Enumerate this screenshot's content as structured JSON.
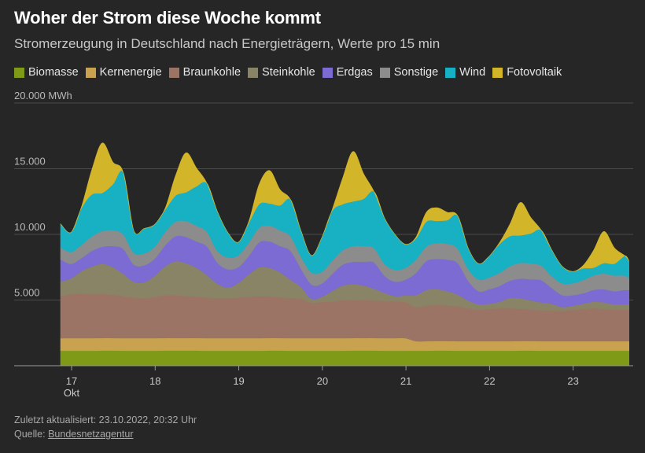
{
  "title": "Woher der Strom diese Woche kommt",
  "subtitle": "Stromerzeugung in Deutschland nach Energieträgern, Werte pro 15 min",
  "footer": {
    "updated": "Zuletzt aktualisiert: 23.10.2022, 20:32 Uhr",
    "source_label": "Quelle: ",
    "source_link": "Bundesnetzagentur"
  },
  "chart_data": {
    "type": "area",
    "stacked": true,
    "ylim": [
      0,
      20000
    ],
    "yticks": [
      {
        "value": 5000,
        "label": "5.000"
      },
      {
        "value": 10000,
        "label": "10.000"
      },
      {
        "value": 15000,
        "label": "15.000"
      },
      {
        "value": 20000,
        "label": "20.000 MWh"
      }
    ],
    "xlim": [
      17.0,
      23.85
    ],
    "xticks": [
      {
        "value": 17,
        "label": "17",
        "sublabel": "Okt"
      },
      {
        "value": 18,
        "label": "18"
      },
      {
        "value": 19,
        "label": "19"
      },
      {
        "value": 20,
        "label": "20"
      },
      {
        "value": 21,
        "label": "21"
      },
      {
        "value": 22,
        "label": "22"
      },
      {
        "value": 23,
        "label": "23"
      }
    ],
    "x": [
      17.0,
      17.125,
      17.25,
      17.375,
      17.5,
      17.625,
      17.75,
      17.875,
      18.0,
      18.125,
      18.25,
      18.375,
      18.5,
      18.625,
      18.75,
      18.875,
      19.0,
      19.125,
      19.25,
      19.375,
      19.5,
      19.625,
      19.75,
      19.875,
      20.0,
      20.125,
      20.25,
      20.375,
      20.5,
      20.625,
      20.75,
      20.875,
      21.0,
      21.125,
      21.25,
      21.375,
      21.5,
      21.625,
      21.75,
      21.875,
      22.0,
      22.125,
      22.25,
      22.375,
      22.5,
      22.625,
      22.75,
      22.875,
      23.0,
      23.125,
      23.25,
      23.375,
      23.5,
      23.625,
      23.75,
      23.8
    ],
    "series": [
      {
        "name": "Biomasse",
        "color": "#7f9a16",
        "values": [
          1150,
          1150,
          1150,
          1150,
          1160,
          1160,
          1150,
          1150,
          1150,
          1150,
          1160,
          1160,
          1160,
          1160,
          1150,
          1150,
          1150,
          1150,
          1150,
          1150,
          1160,
          1160,
          1150,
          1150,
          1150,
          1150,
          1150,
          1150,
          1160,
          1160,
          1160,
          1150,
          1150,
          1150,
          1150,
          1150,
          1160,
          1160,
          1150,
          1150,
          1150,
          1150,
          1150,
          1150,
          1160,
          1160,
          1150,
          1150,
          1150,
          1150,
          1150,
          1150,
          1150,
          1150,
          1150,
          1150
        ]
      },
      {
        "name": "Kernenergie",
        "color": "#c9a24f",
        "values": [
          950,
          950,
          950,
          950,
          950,
          950,
          950,
          950,
          950,
          950,
          950,
          950,
          950,
          950,
          950,
          950,
          950,
          950,
          950,
          950,
          950,
          950,
          950,
          950,
          950,
          950,
          950,
          950,
          950,
          950,
          950,
          950,
          950,
          950,
          720,
          720,
          720,
          720,
          720,
          720,
          720,
          720,
          720,
          720,
          720,
          720,
          720,
          720,
          720,
          720,
          720,
          720,
          720,
          720,
          720,
          720
        ]
      },
      {
        "name": "Braunkohle",
        "color": "#9c7465",
        "values": [
          3200,
          3350,
          3400,
          3350,
          3350,
          3300,
          3200,
          3100,
          3050,
          3150,
          3250,
          3250,
          3200,
          3150,
          3100,
          3050,
          3050,
          3100,
          3150,
          3200,
          3150,
          3100,
          3050,
          3000,
          2700,
          2750,
          2800,
          2900,
          2900,
          2900,
          2850,
          2850,
          2800,
          2750,
          2600,
          2700,
          2750,
          2700,
          2650,
          2500,
          2400,
          2450,
          2500,
          2500,
          2450,
          2400,
          2350,
          2350,
          2300,
          2400,
          2450,
          2500,
          2450,
          2400,
          2400,
          2400
        ]
      },
      {
        "name": "Steinkohle",
        "color": "#8a8466",
        "values": [
          1100,
          1200,
          1700,
          2100,
          2300,
          2100,
          1700,
          1200,
          1200,
          1600,
          2200,
          2600,
          2500,
          2200,
          1700,
          1100,
          800,
          1100,
          1700,
          2200,
          2200,
          1900,
          1400,
          900,
          300,
          400,
          800,
          1100,
          1200,
          1100,
          900,
          600,
          400,
          500,
          900,
          1200,
          1200,
          1100,
          900,
          600,
          400,
          400,
          500,
          800,
          800,
          700,
          600,
          500,
          300,
          300,
          400,
          500,
          500,
          400,
          400,
          400
        ]
      },
      {
        "name": "Erdgas",
        "color": "#7b6bd2",
        "values": [
          1700,
          1100,
          1000,
          1200,
          1300,
          1600,
          1900,
          1300,
          1300,
          1300,
          1600,
          1900,
          2000,
          2000,
          2200,
          1600,
          1400,
          1200,
          1400,
          1900,
          2000,
          2000,
          2200,
          1400,
          1100,
          1000,
          1300,
          1600,
          1700,
          1800,
          2000,
          1300,
          1100,
          1200,
          1700,
          2200,
          2300,
          2400,
          2400,
          1500,
          1000,
          1100,
          1200,
          1300,
          1500,
          1600,
          1700,
          1200,
          900,
          800,
          800,
          900,
          1000,
          1000,
          1100,
          1100
        ]
      },
      {
        "name": "Sonstige",
        "color": "#8c8c8c",
        "values": [
          900,
          900,
          1000,
          1100,
          1200,
          1200,
          1100,
          900,
          900,
          900,
          1000,
          1100,
          1200,
          1200,
          1100,
          900,
          900,
          900,
          1000,
          1100,
          1200,
          1200,
          1100,
          900,
          900,
          900,
          1000,
          1100,
          1200,
          1200,
          1100,
          900,
          900,
          900,
          1000,
          1100,
          1200,
          1200,
          1100,
          900,
          900,
          900,
          1000,
          1100,
          1200,
          1200,
          1100,
          900,
          900,
          900,
          1000,
          1100,
          1200,
          1200,
          1100,
          900
        ]
      },
      {
        "name": "Wind",
        "color": "#18b1c3",
        "values": [
          1800,
          1500,
          2800,
          3200,
          2900,
          3500,
          4700,
          1700,
          1900,
          1700,
          1700,
          2000,
          2200,
          3000,
          3700,
          3000,
          1900,
          1000,
          1500,
          1800,
          1700,
          1900,
          2800,
          2000,
          1300,
          2600,
          3800,
          3500,
          3400,
          3600,
          4300,
          3500,
          2700,
          1800,
          1600,
          1900,
          1700,
          1800,
          2500,
          1600,
          1200,
          1600,
          2200,
          2300,
          2100,
          2300,
          2700,
          2000,
          1300,
          900,
          900,
          600,
          800,
          900,
          1500,
          1300
        ]
      },
      {
        "name": "Fotovoltaik",
        "color": "#d3b52a",
        "values": [
          0,
          0,
          100,
          1900,
          3800,
          1700,
          0,
          0,
          0,
          0,
          100,
          1500,
          3000,
          1400,
          0,
          0,
          0,
          0,
          100,
          1500,
          2500,
          1200,
          0,
          0,
          0,
          0,
          100,
          2000,
          3800,
          1900,
          0,
          0,
          0,
          0,
          100,
          700,
          1000,
          600,
          0,
          0,
          0,
          0,
          100,
          900,
          2500,
          1200,
          0,
          0,
          0,
          0,
          200,
          1300,
          2400,
          1200,
          0,
          0
        ]
      }
    ]
  }
}
